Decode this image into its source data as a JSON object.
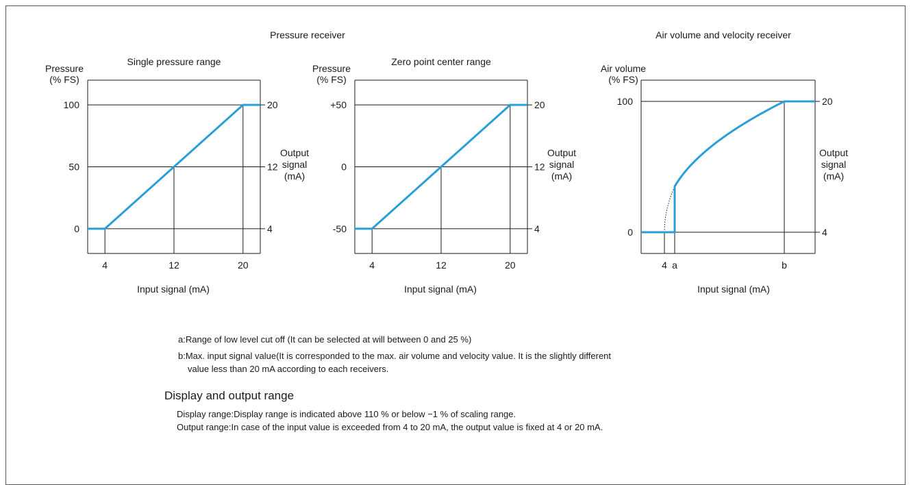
{
  "colors": {
    "curve": "#2a9fd6",
    "axes": "#1a1a1a"
  },
  "groups": {
    "pressure_title": "Pressure receiver",
    "air_title": "Air volume and velocity receiver"
  },
  "chart_data": [
    {
      "type": "line",
      "title": "Single pressure range",
      "ylabel": [
        "Pressure",
        "(% FS)"
      ],
      "xlabel": "Input signal (mA)",
      "right_label": [
        "Output",
        "signal",
        "(mA)"
      ],
      "x_ticks": [
        "4",
        "12",
        "20"
      ],
      "y_ticks": [
        "0",
        "50",
        "100"
      ],
      "right_ticks": [
        "4",
        "12",
        "20"
      ],
      "series": [
        {
          "x": [
            2,
            4,
            12,
            20,
            22
          ],
          "y": [
            0,
            0,
            50,
            100,
            100
          ]
        }
      ],
      "xlim": [
        2,
        22
      ],
      "ylim": [
        -20,
        120
      ]
    },
    {
      "type": "line",
      "title": "Zero point center range",
      "ylabel": [
        "Pressure",
        "(% FS)"
      ],
      "xlabel": "Input signal (mA)",
      "right_label": [
        "Output",
        "signal",
        "(mA)"
      ],
      "x_ticks": [
        "4",
        "12",
        "20"
      ],
      "y_ticks": [
        "-50",
        "0",
        "+50"
      ],
      "right_ticks": [
        "4",
        "12",
        "20"
      ],
      "series": [
        {
          "x": [
            2,
            4,
            12,
            20,
            22
          ],
          "y": [
            -50,
            -50,
            0,
            50,
            50
          ]
        }
      ],
      "xlim": [
        2,
        22
      ],
      "ylim": [
        -70,
        70
      ]
    },
    {
      "type": "line",
      "title": "",
      "ylabel": [
        "Air volume",
        "(% FS)"
      ],
      "xlabel": "Input signal (mA)",
      "right_label": [
        "Output",
        "signal",
        "(mA)"
      ],
      "x_ticks": [
        "4",
        "a",
        "b"
      ],
      "y_ticks": [
        "0",
        "100"
      ],
      "right_ticks": [
        "4",
        "20"
      ],
      "series": [
        {
          "x": [
            "start",
            "4",
            "a",
            "a",
            "b",
            "end"
          ],
          "y": [
            0,
            0,
            0,
            35,
            100,
            100
          ]
        }
      ],
      "note": "square-root curve; dotted line extends curve below cut-off point a"
    }
  ],
  "notes": {
    "a": "a:Range of low level cut off (It can be selected at will between 0 and 25 %)",
    "b1": "b:Max. input signal value(It is corresponded to the max. air volume and velocity value. It is the slightly different",
    "b2": "value less than 20 mA according to each receivers."
  },
  "display": {
    "heading": "Display and output range",
    "line1": "Display range:Display range is indicated above 110 % or below −1 % of scaling range.",
    "line2": "Output range:In case of the input value is exceeded from 4 to 20 mA, the output value is fixed at 4 or 20 mA."
  }
}
